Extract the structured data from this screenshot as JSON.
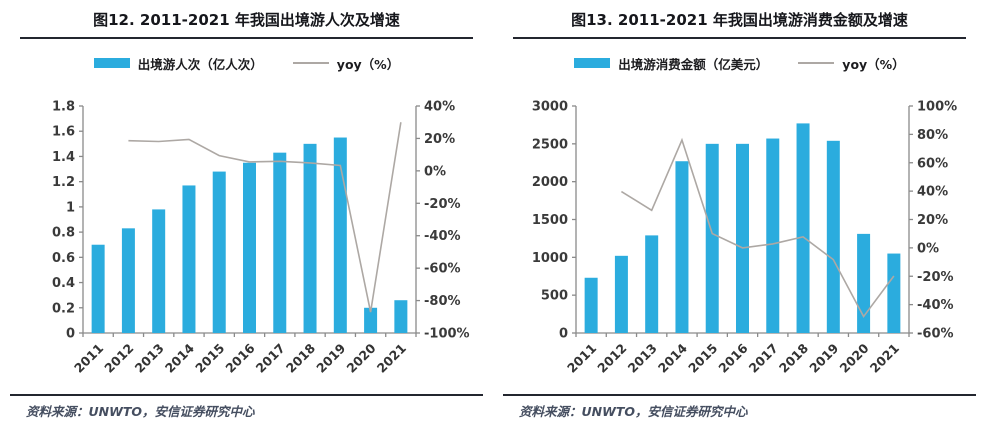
{
  "colors": {
    "bar": "#2BACDE",
    "line": "#ADA8A4",
    "axis": "#8a8a8a",
    "rule": "#23262f",
    "title_text": "#16171c",
    "source_text": "#454e60"
  },
  "chart_data": [
    {
      "type": "bar+line",
      "title": "图12. 2011-2021 年我国出境游人次及增速",
      "categories": [
        "2011",
        "2012",
        "2013",
        "2014",
        "2015",
        "2016",
        "2017",
        "2018",
        "2019",
        "2020",
        "2021"
      ],
      "series": [
        {
          "name": "出境游人次（亿人次）",
          "type": "bar",
          "axis": "left",
          "values": [
            0.7,
            0.83,
            0.98,
            1.17,
            1.28,
            1.35,
            1.43,
            1.5,
            1.55,
            0.2,
            0.26
          ]
        },
        {
          "name": "yoy（%）",
          "type": "line",
          "axis": "right",
          "values": [
            null,
            18.6,
            18.1,
            19.4,
            9.4,
            5.5,
            5.9,
            4.9,
            3.3,
            -87.1,
            30.0
          ]
        }
      ],
      "left_axis": {
        "min": 0,
        "max": 1.8,
        "tick_labels_top_to_bottom": [
          "1.8",
          "1.6",
          "1.4",
          "1.2",
          "1",
          "0.8",
          "0.6",
          "0.4",
          "0.2",
          "0"
        ]
      },
      "right_axis": {
        "min": -100,
        "max": 40,
        "tick_labels_top_to_bottom": [
          "40%",
          "20%",
          "0%",
          "-20%",
          "-40%",
          "-60%",
          "-80%",
          "-100%"
        ]
      },
      "legend_position": "top",
      "grid": false,
      "x_labels_rotated_deg": -45,
      "source": "资料来源：UNWTO，安信证券研究中心"
    },
    {
      "type": "bar+line",
      "title": "图13. 2011-2021 年我国出境游消费金额及增速",
      "categories": [
        "2011",
        "2012",
        "2013",
        "2014",
        "2015",
        "2016",
        "2017",
        "2018",
        "2019",
        "2020",
        "2021"
      ],
      "series": [
        {
          "name": "出境游消费金额（亿美元）",
          "type": "bar",
          "axis": "left",
          "values": [
            730,
            1020,
            1290,
            2270,
            2500,
            2500,
            2570,
            2770,
            2540,
            1310,
            1050
          ]
        },
        {
          "name": "yoy（%）",
          "type": "line",
          "axis": "right",
          "values": [
            null,
            39.7,
            26.5,
            76.0,
            10.1,
            0.0,
            2.8,
            7.8,
            -8.3,
            -48.4,
            -19.8
          ]
        }
      ],
      "left_axis": {
        "min": 0,
        "max": 3000,
        "tick_labels_top_to_bottom": [
          "3000",
          "2500",
          "2000",
          "1500",
          "1000",
          "500",
          "0"
        ]
      },
      "right_axis": {
        "min": -60,
        "max": 100,
        "tick_labels_top_to_bottom": [
          "100%",
          "80%",
          "60%",
          "40%",
          "20%",
          "0%",
          "-20%",
          "-40%",
          "-60%"
        ]
      },
      "legend_position": "top",
      "grid": false,
      "x_labels_rotated_deg": -45,
      "source": "资料来源：UNWTO，安信证券研究中心"
    }
  ]
}
